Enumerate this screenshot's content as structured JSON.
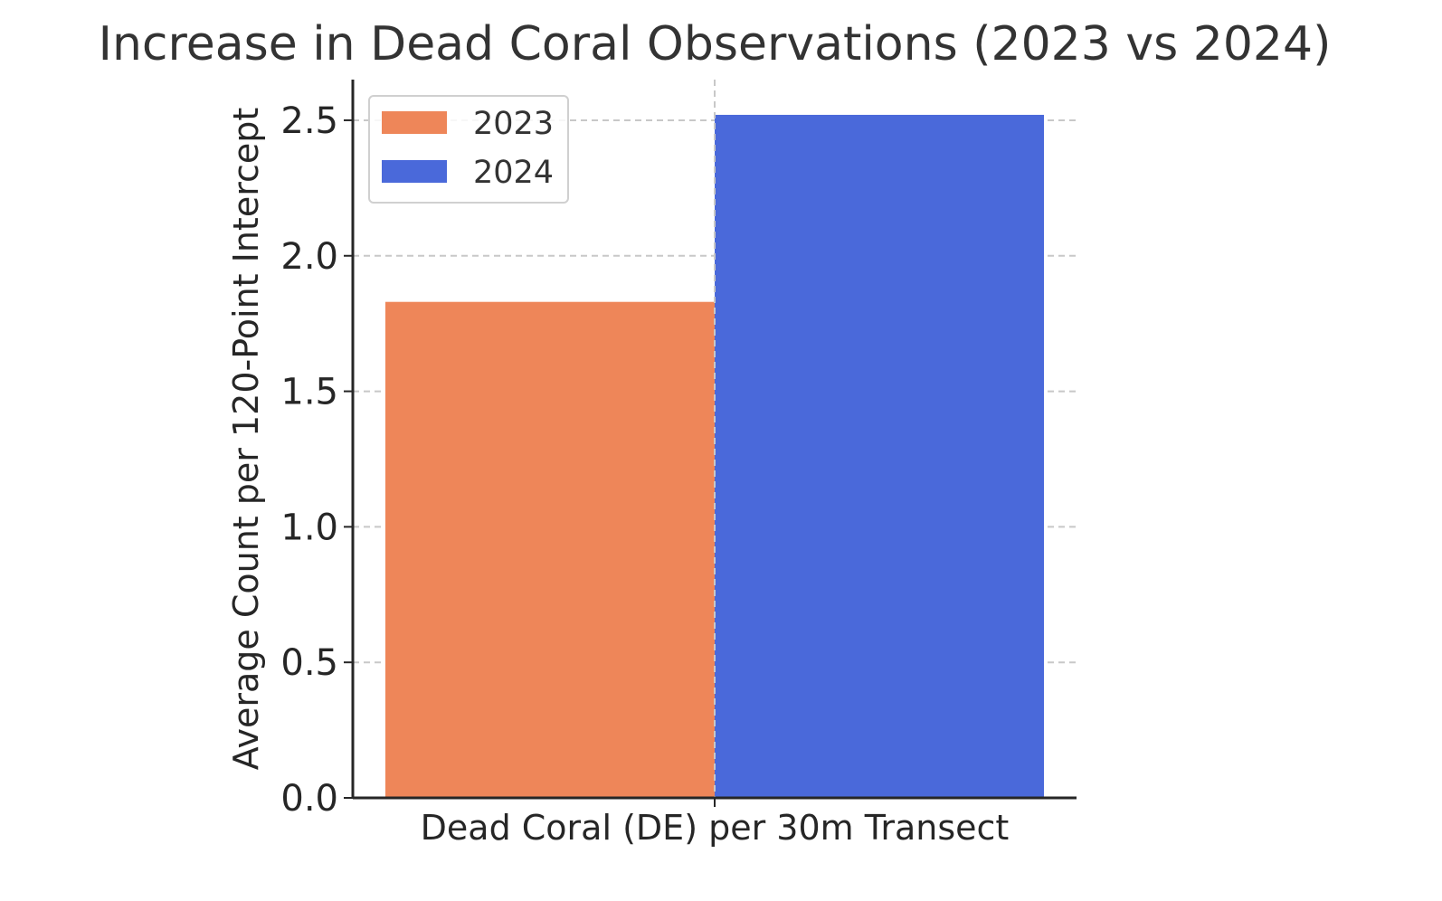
{
  "chart_data": {
    "type": "bar",
    "title": "Increase in Dead Coral Observations (2023 vs 2024)",
    "xlabel": "",
    "ylabel": "Average Count per 120-Point Intercept",
    "categories": [
      "Dead Coral (DE) per 30m Transect"
    ],
    "series": [
      {
        "name": "2023",
        "values": [
          1.83
        ],
        "color": "#EE8659"
      },
      {
        "name": "2024",
        "values": [
          2.52
        ],
        "color": "#4A69DA"
      }
    ],
    "ylim": [
      0,
      2.65
    ],
    "yticks": [
      "0.0",
      "0.5",
      "1.0",
      "1.5",
      "2.0",
      "2.5"
    ],
    "grid": true,
    "legend_position": "top-left"
  }
}
